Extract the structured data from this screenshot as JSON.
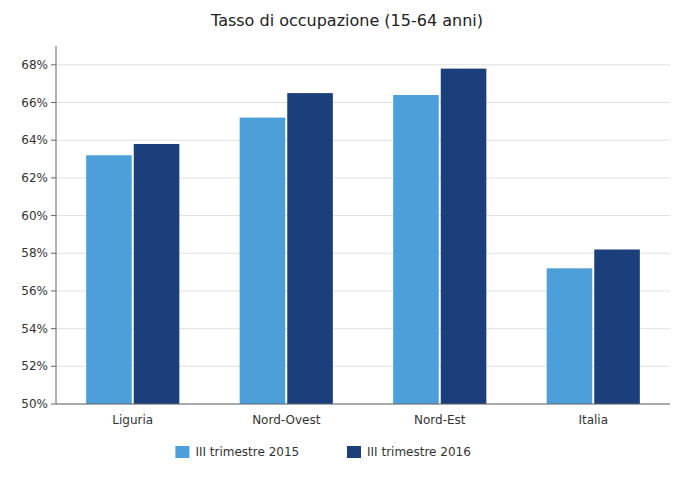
{
  "chart_data": {
    "type": "bar",
    "title": "Tasso di occupazione (15-64 anni)",
    "categories": [
      "Liguria",
      "Nord-Ovest",
      "Nord-Est",
      "Italia"
    ],
    "series": [
      {
        "name": "III trimestre 2015",
        "color": "#4d9fda",
        "values": [
          63.2,
          65.2,
          66.4,
          57.2
        ]
      },
      {
        "name": "III trimestre 2016",
        "color": "#1a3f7a",
        "values": [
          63.8,
          66.5,
          67.8,
          58.2
        ]
      }
    ],
    "ylim": [
      50,
      69
    ],
    "yticks": [
      {
        "value": 50,
        "label": "50%"
      },
      {
        "value": 52,
        "label": "52%"
      },
      {
        "value": 54,
        "label": "54%"
      },
      {
        "value": 56,
        "label": "56%"
      },
      {
        "value": 58,
        "label": "58%"
      },
      {
        "value": 60,
        "label": "60%"
      },
      {
        "value": 62,
        "label": "62%"
      },
      {
        "value": 64,
        "label": "64%"
      },
      {
        "value": 66,
        "label": "66%"
      },
      {
        "value": 68,
        "label": "68%"
      }
    ],
    "grid": true,
    "legend": "bottom"
  }
}
